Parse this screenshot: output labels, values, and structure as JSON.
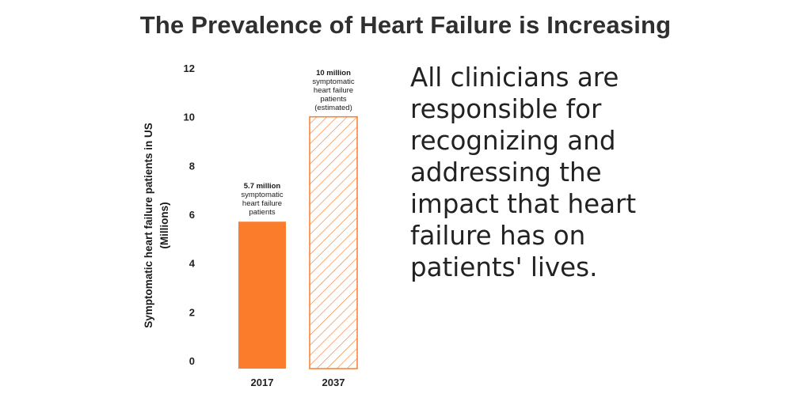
{
  "title": "The Prevalence of Heart Failure is Increasing",
  "side_text_lines": [
    "All clinicians are",
    "responsible for",
    "recognizing and",
    "addressing the",
    "impact that heart",
    "failure has on",
    "patients' lives."
  ],
  "colors": {
    "bar_solid": "#fb7d2c",
    "bar_hatch": "#fb7d2c"
  },
  "chart_data": {
    "type": "bar",
    "categories": [
      "2017",
      "2037"
    ],
    "values": [
      5.7,
      10
    ],
    "ylabel": "Symptomatic heart failure patients in US (Millions)",
    "ylabel_lines": [
      "Symptomatic heart failure patients in US",
      "(Millions)"
    ],
    "ylim": [
      0,
      12
    ],
    "yticks": [
      "0",
      "2",
      "4",
      "6",
      "8",
      "10",
      "12"
    ],
    "grid": false,
    "bar_styles": [
      "solid",
      "hatched"
    ],
    "annotations": [
      {
        "bold": "5.7 million",
        "lines": [
          "symptomatic",
          "heart failure",
          "patients"
        ]
      },
      {
        "bold": "10 million",
        "lines": [
          "symptomatic",
          "heart failure",
          "patients",
          "(estimated)"
        ]
      }
    ]
  }
}
